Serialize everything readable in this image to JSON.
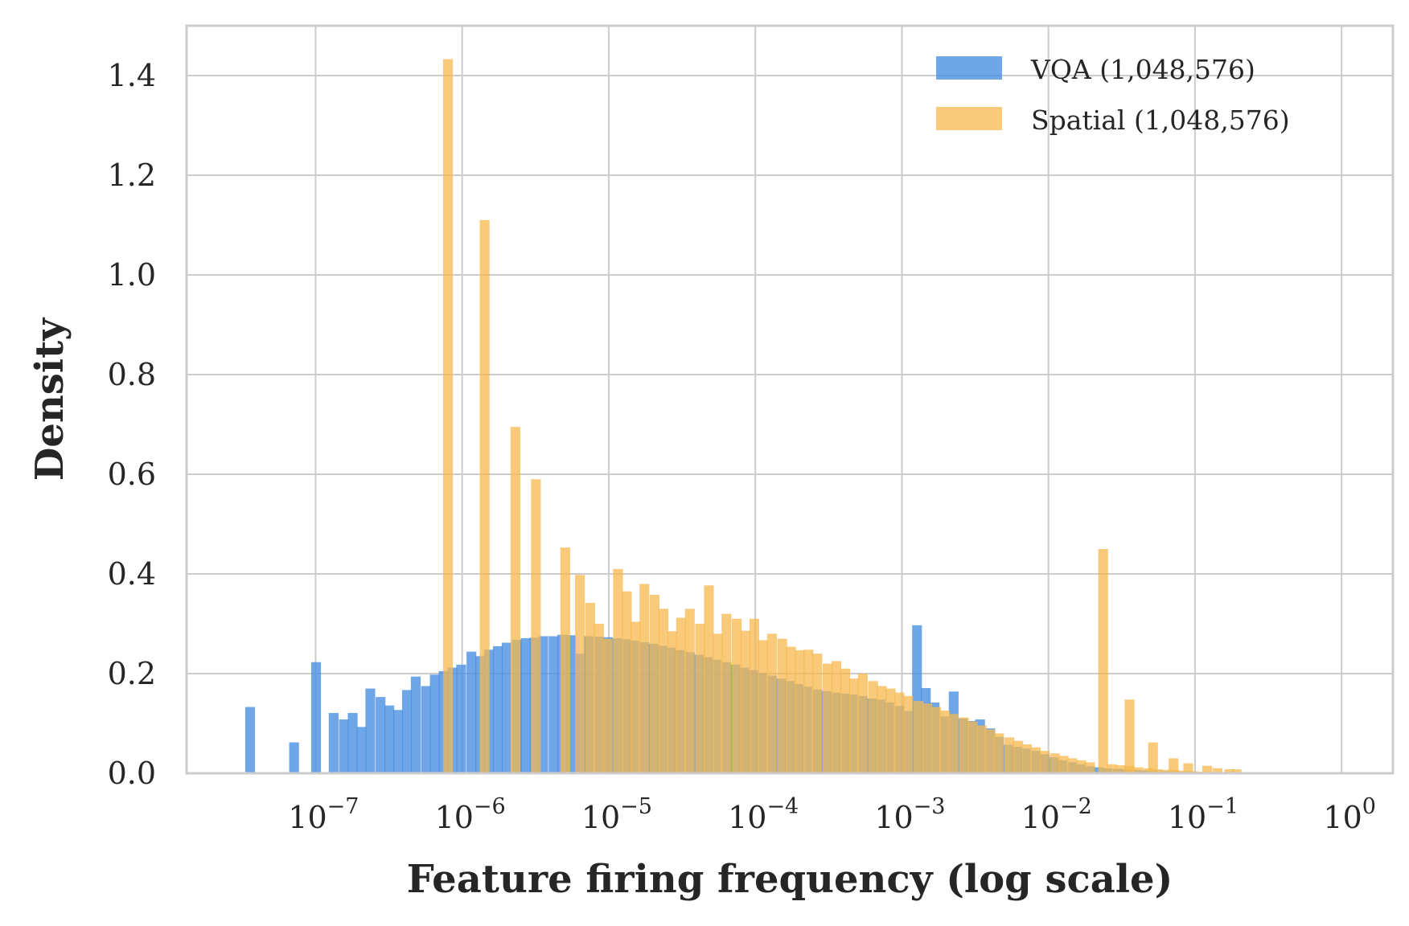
{
  "chart_data": {
    "type": "bar",
    "xlabel": "Feature firing frequency (log scale)",
    "ylabel": "Density",
    "x_scale": "log",
    "xlim_log10": [
      -7.88,
      0.35
    ],
    "ylim": [
      0,
      1.5
    ],
    "y_ticks": [
      "0.0",
      "0.2",
      "0.4",
      "0.6",
      "0.8",
      "1.0",
      "1.2",
      "1.4"
    ],
    "y_tick_values": [
      0.0,
      0.2,
      0.4,
      0.6,
      0.8,
      1.0,
      1.2,
      1.4
    ],
    "x_ticks": [
      {
        "exp": -7,
        "base": "10",
        "power": "−7"
      },
      {
        "exp": -6,
        "base": "10",
        "power": "−6"
      },
      {
        "exp": -5,
        "base": "10",
        "power": "−5"
      },
      {
        "exp": -4,
        "base": "10",
        "power": "−4"
      },
      {
        "exp": -3,
        "base": "10",
        "power": "−3"
      },
      {
        "exp": -2,
        "base": "10",
        "power": "−2"
      },
      {
        "exp": -1,
        "base": "10",
        "power": "−1"
      },
      {
        "exp": 0,
        "base": "10",
        "power": "0"
      }
    ],
    "grid": true,
    "legend_position": "top-right",
    "bin_width_log10": 0.075,
    "series": [
      {
        "name": "VQA (1,048,576)",
        "color": "#4a90e2",
        "opacity": 0.8,
        "bins": [
          [
            -7.48,
            0.133
          ],
          [
            -7.18,
            0.062
          ],
          [
            -7.03,
            0.223
          ],
          [
            -6.91,
            0.121
          ],
          [
            -6.84,
            0.108
          ],
          [
            -6.78,
            0.121
          ],
          [
            -6.72,
            0.093
          ],
          [
            -6.66,
            0.17
          ],
          [
            -6.59,
            0.153
          ],
          [
            -6.53,
            0.136
          ],
          [
            -6.47,
            0.127
          ],
          [
            -6.41,
            0.167
          ],
          [
            -6.35,
            0.194
          ],
          [
            -6.28,
            0.175
          ],
          [
            -6.22,
            0.198
          ],
          [
            -6.16,
            0.205
          ],
          [
            -6.1,
            0.212
          ],
          [
            -6.04,
            0.218
          ],
          [
            -5.97,
            0.244
          ],
          [
            -5.91,
            0.235
          ],
          [
            -5.85,
            0.248
          ],
          [
            -5.79,
            0.255
          ],
          [
            -5.73,
            0.262
          ],
          [
            -5.66,
            0.268
          ],
          [
            -5.6,
            0.271
          ],
          [
            -5.54,
            0.272
          ],
          [
            -5.48,
            0.275
          ],
          [
            -5.41,
            0.275
          ],
          [
            -5.35,
            0.278
          ],
          [
            -5.29,
            0.277
          ],
          [
            -5.23,
            0.24
          ],
          [
            -5.17,
            0.275
          ],
          [
            -5.1,
            0.274
          ],
          [
            -5.04,
            0.273
          ],
          [
            -4.98,
            0.271
          ],
          [
            -4.92,
            0.269
          ],
          [
            -4.86,
            0.266
          ],
          [
            -4.79,
            0.263
          ],
          [
            -4.73,
            0.26
          ],
          [
            -4.67,
            0.256
          ],
          [
            -4.61,
            0.252
          ],
          [
            -4.55,
            0.247
          ],
          [
            -4.48,
            0.243
          ],
          [
            -4.42,
            0.238
          ],
          [
            -4.36,
            0.233
          ],
          [
            -4.3,
            0.228
          ],
          [
            -4.23,
            0.223
          ],
          [
            -4.17,
            0.218
          ],
          [
            -4.11,
            0.212
          ],
          [
            -4.05,
            0.207
          ],
          [
            -3.99,
            0.201
          ],
          [
            -3.92,
            0.196
          ],
          [
            -3.86,
            0.19
          ],
          [
            -3.8,
            0.185
          ],
          [
            -3.74,
            0.179
          ],
          [
            -3.68,
            0.174
          ],
          [
            -3.61,
            0.168
          ],
          [
            -3.55,
            0.165
          ],
          [
            -3.49,
            0.162
          ],
          [
            -3.43,
            0.16
          ],
          [
            -3.37,
            0.158
          ],
          [
            -3.3,
            0.155
          ],
          [
            -3.24,
            0.15
          ],
          [
            -3.18,
            0.148
          ],
          [
            -3.12,
            0.142
          ],
          [
            -3.05,
            0.135
          ],
          [
            -2.99,
            0.125
          ],
          [
            -2.93,
            0.297
          ],
          [
            -2.87,
            0.171
          ],
          [
            -2.81,
            0.142
          ],
          [
            -2.74,
            0.114
          ],
          [
            -2.68,
            0.164
          ],
          [
            -2.62,
            0.11
          ],
          [
            -2.56,
            0.105
          ],
          [
            -2.5,
            0.108
          ],
          [
            -2.43,
            0.09
          ],
          [
            -2.37,
            0.073
          ],
          [
            -2.31,
            0.057
          ],
          [
            -2.25,
            0.053
          ],
          [
            -2.19,
            0.05
          ],
          [
            -2.12,
            0.045
          ],
          [
            -2.06,
            0.038
          ],
          [
            -2.0,
            0.032
          ],
          [
            -1.94,
            0.026
          ],
          [
            -1.87,
            0.022
          ],
          [
            -1.81,
            0.018
          ],
          [
            -1.75,
            0.014
          ],
          [
            -1.69,
            0.012
          ],
          [
            -1.63,
            0.01
          ],
          [
            -1.56,
            0.009
          ],
          [
            -1.5,
            0.008
          ],
          [
            -1.44,
            0.007
          ],
          [
            -1.38,
            0.006
          ],
          [
            -1.32,
            0.005
          ],
          [
            -1.25,
            0.004
          ],
          [
            -1.19,
            0.004
          ],
          [
            -1.13,
            0.003
          ],
          [
            -1.07,
            0.003
          ],
          [
            -1.0,
            0.002
          ],
          [
            -0.94,
            0.002
          ],
          [
            -0.88,
            0.001
          ],
          [
            -0.82,
            0.001
          ]
        ]
      },
      {
        "name": "Spatial (1,048,576)",
        "color": "#f6b84e",
        "opacity": 0.75,
        "bins": [
          [
            -6.13,
            1.433
          ],
          [
            -5.88,
            1.11
          ],
          [
            -5.67,
            0.695
          ],
          [
            -5.53,
            0.59
          ],
          [
            -5.33,
            0.453
          ],
          [
            -5.23,
            0.398
          ],
          [
            -5.16,
            0.342
          ],
          [
            -5.1,
            0.3
          ],
          [
            -5.04,
            0.27
          ],
          [
            -4.97,
            0.41
          ],
          [
            -4.91,
            0.365
          ],
          [
            -4.85,
            0.304
          ],
          [
            -4.79,
            0.38
          ],
          [
            -4.72,
            0.358
          ],
          [
            -4.66,
            0.33
          ],
          [
            -4.6,
            0.285
          ],
          [
            -4.54,
            0.312
          ],
          [
            -4.48,
            0.33
          ],
          [
            -4.41,
            0.3
          ],
          [
            -4.35,
            0.377
          ],
          [
            -4.29,
            0.28
          ],
          [
            -4.23,
            0.32
          ],
          [
            -4.16,
            0.31
          ],
          [
            -4.1,
            0.286
          ],
          [
            -4.04,
            0.31
          ],
          [
            -3.98,
            0.267
          ],
          [
            -3.92,
            0.28
          ],
          [
            -3.85,
            0.27
          ],
          [
            -3.79,
            0.254
          ],
          [
            -3.73,
            0.247
          ],
          [
            -3.67,
            0.248
          ],
          [
            -3.61,
            0.24
          ],
          [
            -3.54,
            0.22
          ],
          [
            -3.48,
            0.225
          ],
          [
            -3.42,
            0.21
          ],
          [
            -3.36,
            0.19
          ],
          [
            -3.3,
            0.2
          ],
          [
            -3.23,
            0.185
          ],
          [
            -3.17,
            0.175
          ],
          [
            -3.11,
            0.17
          ],
          [
            -3.05,
            0.162
          ],
          [
            -2.99,
            0.155
          ],
          [
            -2.92,
            0.145
          ],
          [
            -2.86,
            0.14
          ],
          [
            -2.8,
            0.133
          ],
          [
            -2.74,
            0.126
          ],
          [
            -2.68,
            0.119
          ],
          [
            -2.61,
            0.112
          ],
          [
            -2.55,
            0.104
          ],
          [
            -2.49,
            0.096
          ],
          [
            -2.43,
            0.088
          ],
          [
            -2.37,
            0.08
          ],
          [
            -2.3,
            0.072
          ],
          [
            -2.24,
            0.065
          ],
          [
            -2.18,
            0.058
          ],
          [
            -2.12,
            0.052
          ],
          [
            -2.06,
            0.045
          ],
          [
            -1.99,
            0.04
          ],
          [
            -1.93,
            0.035
          ],
          [
            -1.87,
            0.03
          ],
          [
            -1.81,
            0.026
          ],
          [
            -1.75,
            0.022
          ],
          [
            -1.66,
            0.45
          ],
          [
            -1.6,
            0.018
          ],
          [
            -1.54,
            0.016
          ],
          [
            -1.48,
            0.015
          ],
          [
            -1.42,
            0.012
          ],
          [
            -1.35,
            0.01
          ],
          [
            -1.29,
            0.008
          ],
          [
            -1.23,
            0.007
          ],
          [
            -1.17,
            0.006
          ],
          [
            -1.11,
            0.005
          ],
          [
            -1.04,
            0.004
          ],
          [
            -0.98,
            0.003
          ],
          [
            -0.92,
            0.002
          ],
          [
            -1.48,
            0.148
          ],
          [
            -1.32,
            0.062
          ],
          [
            -1.18,
            0.03
          ],
          [
            -1.08,
            0.02
          ],
          [
            -0.95,
            0.015
          ],
          [
            -0.88,
            0.01
          ],
          [
            -0.8,
            0.008
          ],
          [
            -0.75,
            0.008
          ]
        ]
      }
    ]
  }
}
